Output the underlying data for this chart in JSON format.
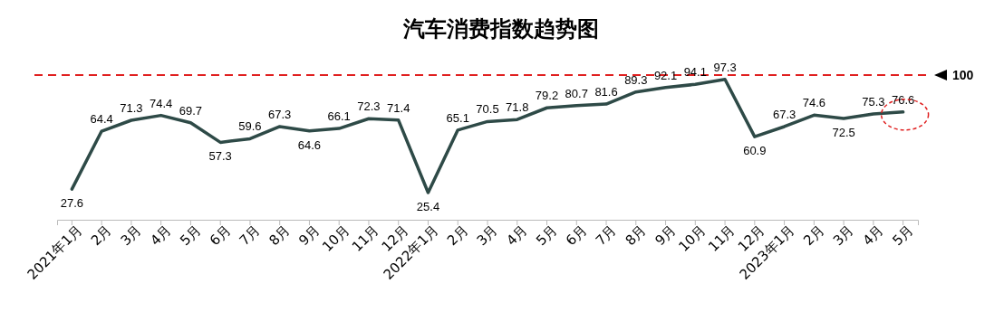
{
  "chart_data": {
    "type": "line",
    "title": "汽车消费指数趋势图",
    "categories": [
      "2021年1月",
      "2月",
      "3月",
      "4月",
      "5月",
      "6月",
      "7月",
      "8月",
      "9月",
      "10月",
      "11月",
      "12月",
      "2022年1月",
      "2月",
      "3月",
      "4月",
      "5月",
      "6月",
      "7月",
      "8月",
      "9月",
      "10月",
      "11月",
      "12月",
      "2023年1月",
      "2月",
      "3月",
      "4月",
      "5月"
    ],
    "series": [
      {
        "color": "#2e4a47",
        "values": [
          27.6,
          64.4,
          71.3,
          74.4,
          69.7,
          57.3,
          59.6,
          67.3,
          64.6,
          66.1,
          72.3,
          71.4,
          25.4,
          65.1,
          70.5,
          71.8,
          79.2,
          80.7,
          81.6,
          89.3,
          92.1,
          94.1,
          97.3,
          60.9,
          67.3,
          74.6,
          72.5,
          75.3,
          76.6
        ]
      }
    ],
    "tick_labels": "x",
    "data_labels": true,
    "marker": "none",
    "line_style": "solid",
    "ref_lines": [
      {
        "axis": "y",
        "value": 100,
        "label": "100",
        "color": "#e02020",
        "line_style": "dashed"
      }
    ]
  }
}
